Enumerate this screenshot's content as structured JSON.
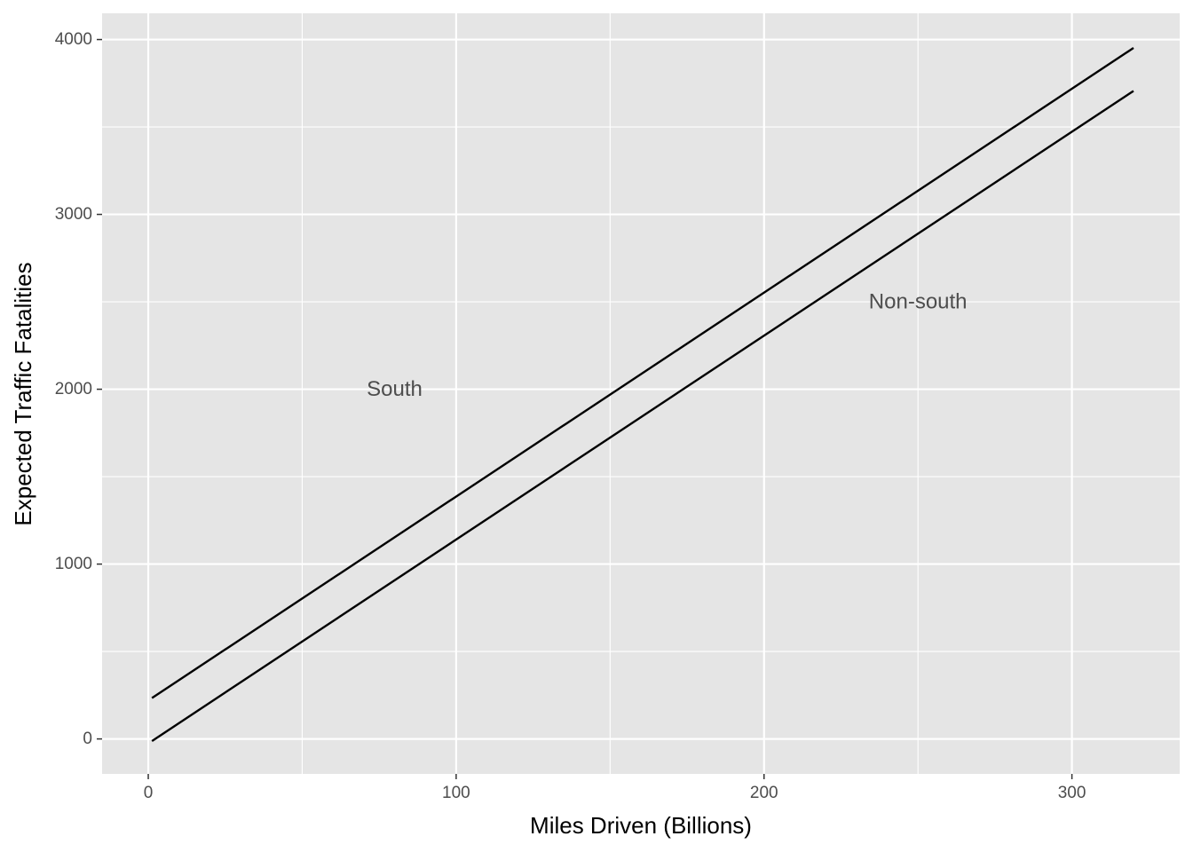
{
  "chart_data": {
    "type": "line",
    "title": "",
    "xlabel": "Miles Driven (Billions)",
    "ylabel": "Expected Traffic Fatalities",
    "xlim": [
      -15,
      335
    ],
    "ylim": [
      -200,
      4150
    ],
    "x_ticks": [
      0,
      100,
      200,
      300
    ],
    "x_tick_labels": [
      "0",
      "100",
      "200",
      "300"
    ],
    "x_minor_ticks": [
      50,
      150,
      250
    ],
    "y_ticks": [
      0,
      1000,
      2000,
      3000,
      4000
    ],
    "y_tick_labels": [
      "0",
      "1000",
      "2000",
      "3000",
      "4000"
    ],
    "y_minor_ticks": [
      500,
      1500,
      2500,
      3500
    ],
    "grid": true,
    "background": "#e5e5e5",
    "grid_color": "#ffffff",
    "line_color": "#000000",
    "series": [
      {
        "x": [
          1.2,
          320
        ],
        "y": [
          234,
          3952
        ]
      },
      {
        "x": [
          1.2,
          320
        ],
        "y": [
          -12,
          3706
        ]
      }
    ],
    "annotations": [
      {
        "text": "South",
        "x": 80,
        "y": 2000
      },
      {
        "text": "Non-south",
        "x": 250,
        "y": 2500
      }
    ]
  }
}
